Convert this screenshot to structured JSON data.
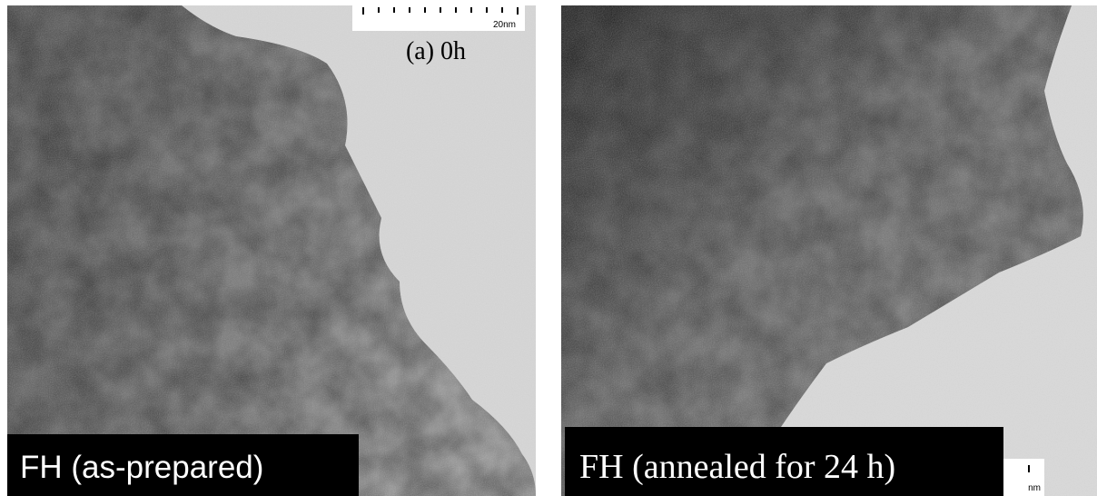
{
  "panels": [
    {
      "scale_bar": "20nm",
      "label": "(a) 0h",
      "caption": "FH (as-prepared)"
    },
    {
      "scale_bar": "nm",
      "caption": "FH (annealed for 24 h)"
    }
  ]
}
